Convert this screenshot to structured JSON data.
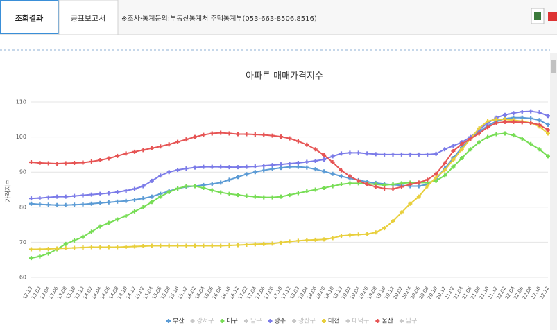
{
  "header": {
    "tabs": [
      "조회결과",
      "공표보고서"
    ],
    "note": "※조사·통계문의:부동산통계처 주택통계부(053-663-8506,8516)"
  },
  "chart_data": {
    "type": "line",
    "title": "아파트 매매가격지수",
    "y_label": "가격지수",
    "categories": [
      "12.12",
      "13.02",
      "13.04",
      "13.06",
      "13.08",
      "13.10",
      "13.12",
      "14.02",
      "14.04",
      "14.06",
      "14.08",
      "14.10",
      "14.12",
      "15.02",
      "15.04",
      "15.06",
      "15.08",
      "15.10",
      "15.12",
      "16.02",
      "16.04",
      "16.06",
      "16.08",
      "16.10",
      "16.12",
      "17.02",
      "17.04",
      "17.06",
      "17.08",
      "17.10",
      "17.12",
      "18.02",
      "18.04",
      "18.06",
      "18.08",
      "18.10",
      "18.12",
      "19.02",
      "19.04",
      "19.06",
      "19.08",
      "19.10",
      "19.12",
      "20.02",
      "20.04",
      "20.06",
      "20.08",
      "20.10",
      "20.12",
      "21.02",
      "21.04",
      "21.06",
      "21.08",
      "21.10",
      "21.12",
      "22.02",
      "22.04",
      "22.06",
      "22.08",
      "22.10",
      "22.12"
    ],
    "ylim": [
      60,
      110
    ],
    "yticks": [
      60,
      70,
      80,
      90,
      100,
      110
    ],
    "grid": true,
    "series": [
      {
        "name": "부산",
        "color": "#5b9bd5",
        "values": [
          81.0,
          80.8,
          80.7,
          80.6,
          80.6,
          80.7,
          80.8,
          81.0,
          81.2,
          81.4,
          81.6,
          81.8,
          82.1,
          82.5,
          83.0,
          83.8,
          84.6,
          85.3,
          85.8,
          86.0,
          86.3,
          86.6,
          87.0,
          87.8,
          88.6,
          89.4,
          90.0,
          90.5,
          90.9,
          91.2,
          91.5,
          91.5,
          91.3,
          90.8,
          90.2,
          89.5,
          88.8,
          88.2,
          87.7,
          87.2,
          86.9,
          86.6,
          86.4,
          86.2,
          86.0,
          86.0,
          86.5,
          88.0,
          91.0,
          94.0,
          97.0,
          99.5,
          101.5,
          103.2,
          104.5,
          105.2,
          105.5,
          105.5,
          105.3,
          104.8,
          103.5
        ]
      },
      {
        "name": "강서구",
        "color": "#c8c8c8"
      },
      {
        "name": "대구",
        "color": "#77dd55",
        "values": [
          65.5,
          66.0,
          66.8,
          68.0,
          69.5,
          70.5,
          71.5,
          73.0,
          74.5,
          75.5,
          76.5,
          77.5,
          78.8,
          80.0,
          81.5,
          83.0,
          84.3,
          85.3,
          86.0,
          86.0,
          85.5,
          84.8,
          84.2,
          83.8,
          83.5,
          83.2,
          83.0,
          82.8,
          82.8,
          83.0,
          83.5,
          84.0,
          84.5,
          85.0,
          85.5,
          86.0,
          86.5,
          86.8,
          86.8,
          86.7,
          86.5,
          86.3,
          86.5,
          86.8,
          87.0,
          87.0,
          87.0,
          87.5,
          89.0,
          91.5,
          94.0,
          96.5,
          98.5,
          100.0,
          100.8,
          101.0,
          100.5,
          99.5,
          98.0,
          96.5,
          94.5
        ]
      },
      {
        "name": "남구",
        "color": "#c8c8c8"
      },
      {
        "name": "광주",
        "color": "#7b7be8",
        "values": [
          82.5,
          82.6,
          82.8,
          83.0,
          83.0,
          83.2,
          83.4,
          83.6,
          83.8,
          84.0,
          84.3,
          84.7,
          85.2,
          86.0,
          87.5,
          89.0,
          90.0,
          90.6,
          91.0,
          91.3,
          91.5,
          91.5,
          91.5,
          91.4,
          91.4,
          91.5,
          91.6,
          91.8,
          92.0,
          92.2,
          92.4,
          92.6,
          92.9,
          93.2,
          93.6,
          94.5,
          95.3,
          95.5,
          95.5,
          95.3,
          95.1,
          95.0,
          95.0,
          95.0,
          95.0,
          95.0,
          95.0,
          95.2,
          96.5,
          97.5,
          98.5,
          100.0,
          102.0,
          104.0,
          105.5,
          106.3,
          106.8,
          107.2,
          107.3,
          107.0,
          106.0
        ]
      },
      {
        "name": "광산구",
        "color": "#c8c8c8"
      },
      {
        "name": "대전",
        "color": "#e8cf3c",
        "values": [
          68.0,
          68.0,
          68.1,
          68.2,
          68.3,
          68.4,
          68.5,
          68.6,
          68.6,
          68.6,
          68.6,
          68.7,
          68.8,
          68.9,
          69.0,
          69.0,
          69.0,
          69.0,
          69.0,
          69.0,
          69.0,
          69.0,
          69.0,
          69.1,
          69.2,
          69.3,
          69.4,
          69.5,
          69.6,
          69.9,
          70.2,
          70.4,
          70.6,
          70.7,
          70.8,
          71.2,
          71.8,
          72.0,
          72.2,
          72.3,
          72.8,
          74.0,
          76.0,
          78.5,
          81.0,
          83.0,
          86.0,
          88.5,
          90.5,
          93.5,
          96.5,
          99.5,
          102.5,
          104.5,
          105.0,
          105.0,
          104.8,
          104.5,
          104.0,
          103.0,
          101.0
        ]
      },
      {
        "name": "대덕구",
        "color": "#c8c8c8"
      },
      {
        "name": "울산",
        "color": "#e65454",
        "values": [
          92.8,
          92.6,
          92.5,
          92.4,
          92.5,
          92.6,
          92.7,
          93.0,
          93.4,
          93.9,
          94.6,
          95.3,
          95.8,
          96.3,
          96.8,
          97.3,
          97.9,
          98.6,
          99.3,
          100.0,
          100.6,
          101.0,
          101.2,
          101.0,
          100.8,
          100.8,
          100.7,
          100.6,
          100.4,
          100.1,
          99.6,
          98.8,
          97.8,
          96.5,
          94.8,
          92.8,
          90.5,
          88.8,
          87.5,
          86.5,
          85.8,
          85.3,
          85.2,
          85.8,
          86.5,
          87.0,
          87.8,
          89.5,
          92.5,
          96.0,
          98.0,
          99.5,
          101.0,
          102.8,
          104.0,
          104.3,
          104.3,
          104.2,
          104.0,
          103.5,
          102.0
        ]
      },
      {
        "name": "남구",
        "color": "#c8c8c8"
      }
    ]
  }
}
